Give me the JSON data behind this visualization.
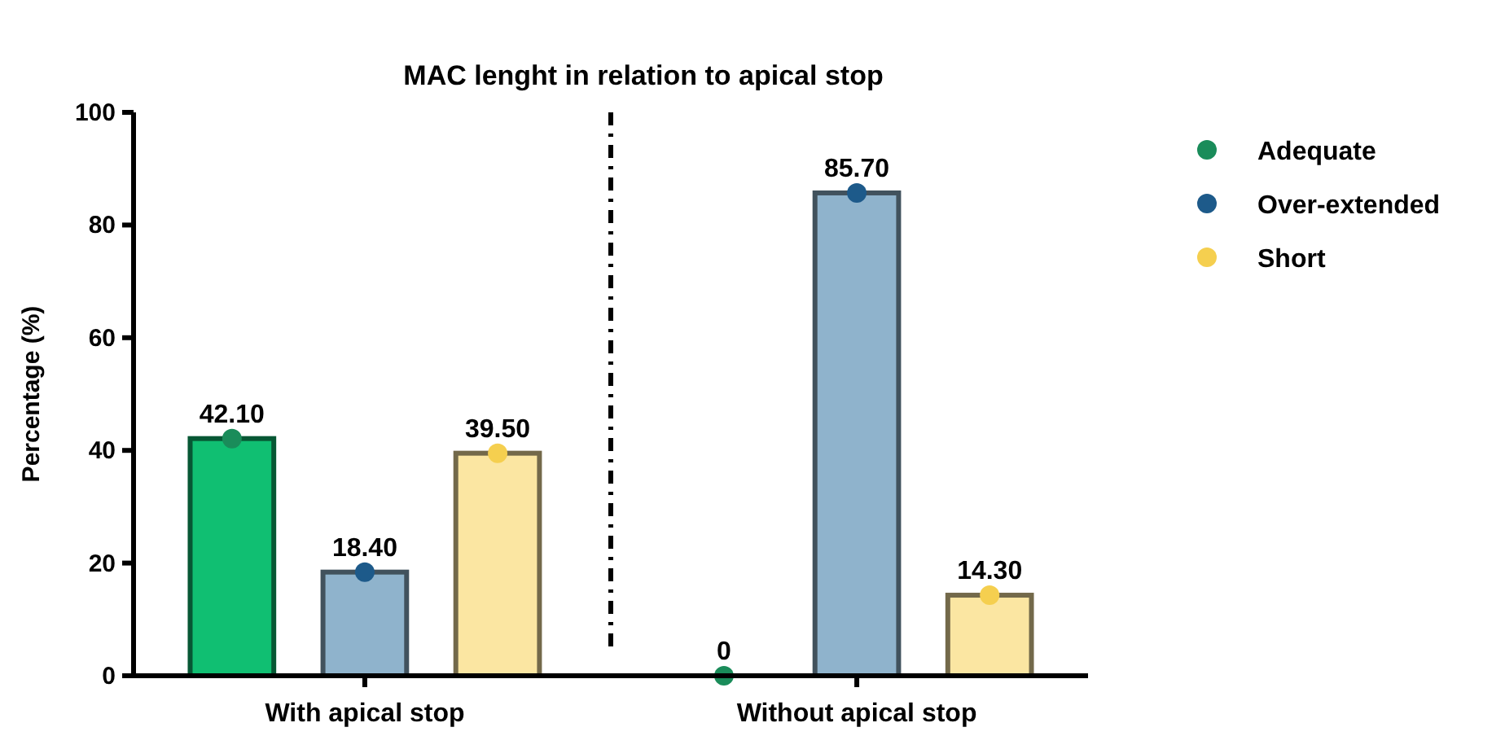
{
  "chart_data": {
    "type": "bar",
    "title": "MAC lenght in relation to apical stop",
    "ylabel": "Percentage (%)",
    "categories": [
      "With apical stop",
      "Without apical stop"
    ],
    "ylim": [
      0,
      100
    ],
    "yticks": [
      0,
      20,
      40,
      60,
      80,
      100
    ],
    "grid": false,
    "legend": "top right",
    "marker": "circle",
    "series": [
      {
        "color": "#10bf72",
        "values": [
          42.1,
          0
        ]
      },
      {
        "color": "#8fb3cc",
        "values": [
          18.4,
          85.7
        ]
      },
      {
        "color": "#fbe6a2",
        "values": [
          39.5,
          14.3
        ]
      },
      {
        "type": "scatter",
        "name": "Adequate",
        "color": "#1a8c5a",
        "x": [
          "With apical stop",
          "Without apical stop"
        ],
        "values": [
          42.1,
          0
        ],
        "value_labels": [
          "42.10",
          "0"
        ]
      },
      {
        "type": "scatter",
        "name": "Over-extended",
        "color": "#1d5a8a",
        "x": [
          "With apical stop",
          "Without apical stop"
        ],
        "values": [
          18.4,
          85.7
        ],
        "value_labels": [
          "18.40",
          "85.70"
        ]
      },
      {
        "type": "scatter",
        "name": "Short",
        "color": "#f5cf4f",
        "x": [
          "With apical stop",
          "Without apical stop"
        ],
        "values": [
          39.5,
          14.3
        ],
        "value_labels": [
          "39.50",
          "14.30"
        ]
      }
    ]
  }
}
